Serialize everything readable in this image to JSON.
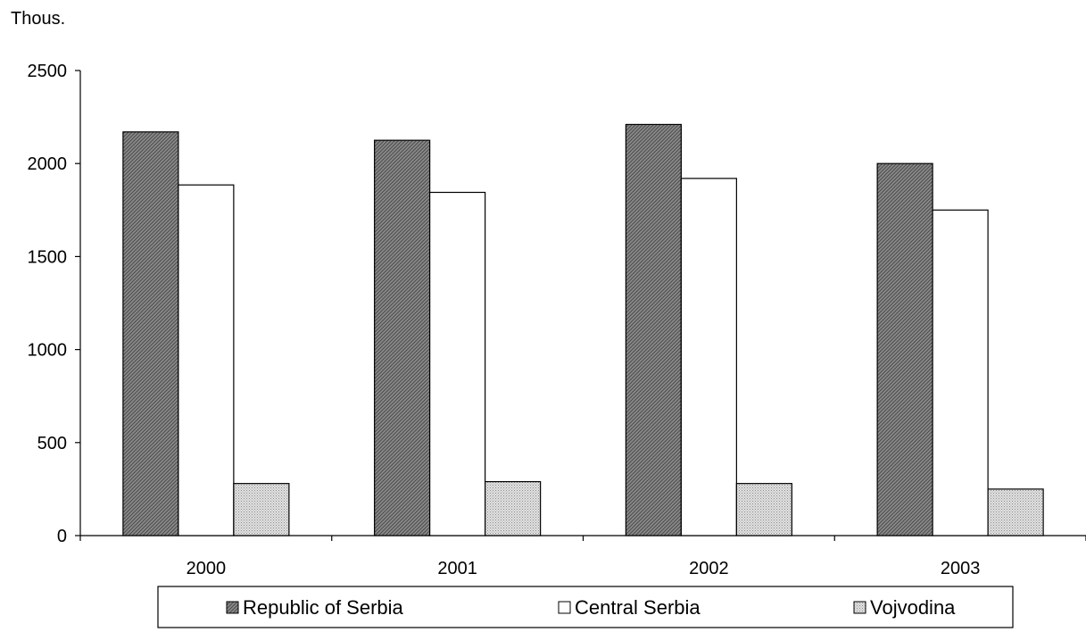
{
  "chart_data": {
    "type": "bar",
    "ylabel": "Thous.",
    "ylim": [
      0,
      2500
    ],
    "yticks": [
      "0",
      "500",
      "1000",
      "1500",
      "2000",
      "2500"
    ],
    "categories": [
      "2000",
      "2001",
      "2002",
      "2003"
    ],
    "series": [
      {
        "name": "Republic of Serbia",
        "values": [
          2170,
          2125,
          2210,
          2000
        ],
        "fill": "dark-hatch",
        "color": "#8c8c8c"
      },
      {
        "name": "Central Serbia",
        "values": [
          1885,
          1845,
          1920,
          1750
        ],
        "fill": "white",
        "color": "#ffffff"
      },
      {
        "name": "Vojvodina",
        "values": [
          280,
          290,
          280,
          250
        ],
        "fill": "light-dots",
        "color": "#c8c8c8"
      }
    ],
    "legend_position": "bottom",
    "grid": false
  }
}
